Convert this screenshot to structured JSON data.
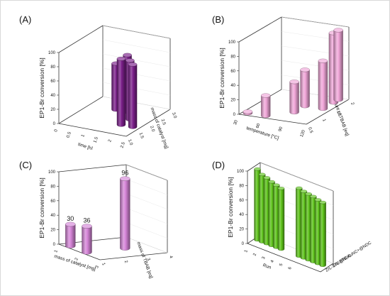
{
  "figure": {
    "panel_labels": [
      "(A)",
      "(B)",
      "(C)",
      "(D)"
    ]
  },
  "chart_data": [
    {
      "panel": "(A)",
      "type": "bar",
      "ylabel": "EP1-Br conversion [%]",
      "ylim": [
        0,
        100
      ],
      "yticks": [
        "0",
        "20",
        "40",
        "60",
        "80",
        "100"
      ],
      "xlabel": "time [h]",
      "zlabel": "mass of catalyst [mg]",
      "x_ticks": [
        "0",
        "0.5",
        "1",
        "1.5",
        "2",
        "2.5"
      ],
      "z_ticks": [
        "1.0",
        "1.5",
        "2.0",
        "2.5",
        "3.0"
      ],
      "color": "#7b1f8a",
      "bars": [
        {
          "x": 1,
          "z": 2.5,
          "value": 65
        },
        {
          "x": 1.5,
          "z": 2.5,
          "value": 80
        },
        {
          "x": 2,
          "z": 2.0,
          "value": 83
        },
        {
          "x": 2,
          "z": 1.5,
          "value": 93
        },
        {
          "x": 2.5,
          "z": 1.5,
          "value": 88
        }
      ]
    },
    {
      "panel": "(B)",
      "type": "bar",
      "ylabel": "EP1-Br conversion [%]",
      "ylim": [
        0,
        100
      ],
      "yticks": [
        "0",
        "20",
        "40",
        "60",
        "80",
        "100"
      ],
      "xlabel": "temperature [°C]",
      "zlabel": "amount of TBAB [eq]",
      "x_ticks": [
        "30",
        "60",
        "90",
        "120"
      ],
      "z_ticks": [
        "0.5",
        "1",
        "1.5",
        "2"
      ],
      "color": "#f0a6d8",
      "bars": [
        {
          "x": 30,
          "z": 0.5,
          "value": 2
        },
        {
          "x": 60,
          "z": 0.5,
          "value": 28
        },
        {
          "x": 90,
          "z": 1,
          "value": 42
        },
        {
          "x": 90,
          "z": 1.5,
          "value": 50
        },
        {
          "x": 120,
          "z": 1.5,
          "value": 66
        },
        {
          "x": 120,
          "z": 2,
          "value": 96
        },
        {
          "x": 120,
          "z": 2.5,
          "value": 96
        }
      ]
    },
    {
      "panel": "(C)",
      "type": "bar",
      "ylabel": "EP1-Br conversion [%]",
      "ylim": [
        0,
        100
      ],
      "yticks": [
        "0",
        "20",
        "40",
        "60",
        "80",
        "100"
      ],
      "xlabel": "mass of catalyst [mg]",
      "zlabel": "mass of TBAB [eq]",
      "x_ticks": [
        "1",
        "2",
        "3"
      ],
      "z_ticks": [
        "1",
        "2",
        "3",
        "4"
      ],
      "color": "#d685d8",
      "bars": [
        {
          "x": 1,
          "z": 1,
          "value": 30,
          "label": "30"
        },
        {
          "x": 2,
          "z": 1,
          "value": 36,
          "label": "36"
        },
        {
          "x": 2,
          "z": 3,
          "value": 96,
          "label": "96"
        }
      ]
    },
    {
      "panel": "(D)",
      "type": "bar",
      "ylabel": "EP1-Br conversion [%]",
      "ylim": [
        0,
        100
      ],
      "yticks": [
        "0",
        "20",
        "40",
        "60",
        "80",
        "100"
      ],
      "xlabel": "Run",
      "x_ticks": [
        "1",
        "2",
        "3",
        "4",
        "5",
        "6"
      ],
      "series": [
        {
          "name": "ZrL-STE@NDC",
          "values": [
            98,
            93,
            91,
            88,
            86,
            84
          ]
        },
        {
          "name": "ZrL-STE-AuNC+@NDC",
          "values": [
            94,
            92,
            91,
            90,
            88,
            87
          ]
        }
      ],
      "color": "#5ec41a"
    }
  ]
}
